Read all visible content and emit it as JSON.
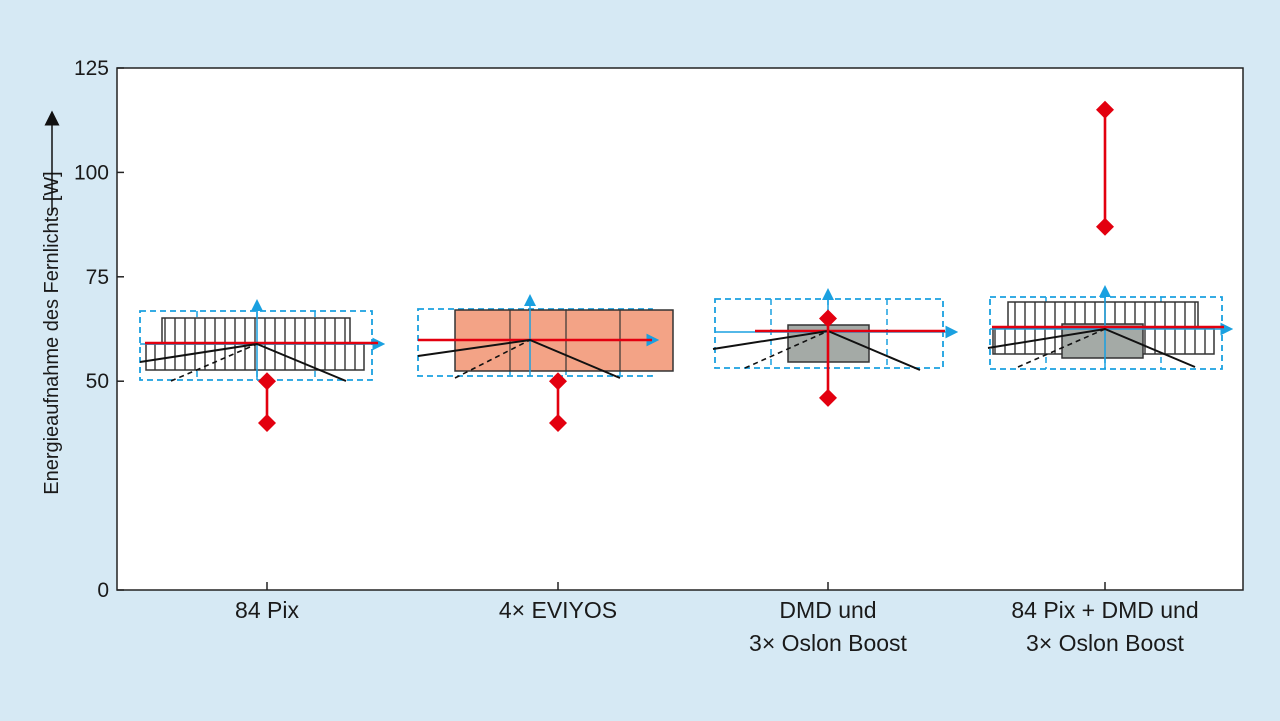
{
  "chart_data": {
    "type": "scatter",
    "ylabel": "Energieaufnahme des Fernlichts [W]",
    "ylim": [
      0,
      125
    ],
    "yticks": [
      0,
      50,
      75,
      100,
      125
    ],
    "categories": [
      [
        "84 Pix"
      ],
      [
        "4× EVIYOS"
      ],
      [
        "DMD und",
        "3× Oslon Boost"
      ],
      [
        "84 Pix + DMD und",
        "3× Oslon Boost"
      ]
    ],
    "series": [
      {
        "values": [
          [
            40,
            50
          ],
          [
            40,
            50
          ],
          [
            46,
            65
          ],
          [
            87,
            115
          ]
        ]
      }
    ],
    "colors": {
      "marker": "#e3000f",
      "blue": "#1aa0e0",
      "salmon": "#f3a386",
      "gray": "#a4aaa6"
    }
  }
}
